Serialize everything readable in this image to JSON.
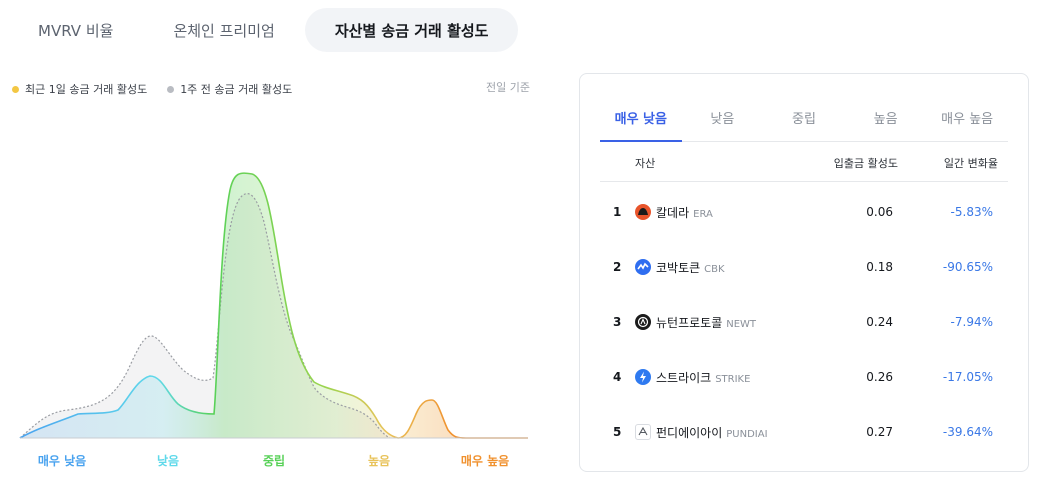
{
  "top_tabs": [
    {
      "label": "MVRV 비율"
    },
    {
      "label": "온체인 프리미엄"
    },
    {
      "label": "자산별 송금 거래 활성도"
    }
  ],
  "legend": {
    "current": "최근 1일 송금 거래 활성도",
    "week": "1주 전 송금 거래 활성도",
    "basis": "전일 기준"
  },
  "chart": {
    "categories": [
      {
        "label": "매우 낮음",
        "color": "#4aa3ef"
      },
      {
        "label": "낮음",
        "color": "#5fd9ea"
      },
      {
        "label": "중립",
        "color": "#58d158"
      },
      {
        "label": "높음",
        "color": "#e8c35a"
      },
      {
        "label": "매우 높음",
        "color": "#f0912e"
      }
    ]
  },
  "card": {
    "tabs": [
      "매우 낮음",
      "낮음",
      "중립",
      "높음",
      "매우 높음"
    ],
    "headers": {
      "asset": "자산",
      "activity": "입출금 활성도",
      "change": "일간 변화율"
    },
    "rows": [
      {
        "rank": "1",
        "name": "칼데라",
        "symbol": "ERA",
        "activity": "0.06",
        "change": "-5.83%",
        "icon": "caldera-icon"
      },
      {
        "rank": "2",
        "name": "코박토큰",
        "symbol": "CBK",
        "activity": "0.18",
        "change": "-90.65%",
        "icon": "cobak-icon"
      },
      {
        "rank": "3",
        "name": "뉴턴프로토콜",
        "symbol": "NEWT",
        "activity": "0.24",
        "change": "-7.94%",
        "icon": "newton-icon"
      },
      {
        "rank": "4",
        "name": "스트라이크",
        "symbol": "STRIKE",
        "activity": "0.26",
        "change": "-17.05%",
        "icon": "strike-icon"
      },
      {
        "rank": "5",
        "name": "펀디에이아이",
        "symbol": "PUNDIAI",
        "activity": "0.27",
        "change": "-39.64%",
        "icon": "pundiai-icon"
      }
    ]
  }
}
